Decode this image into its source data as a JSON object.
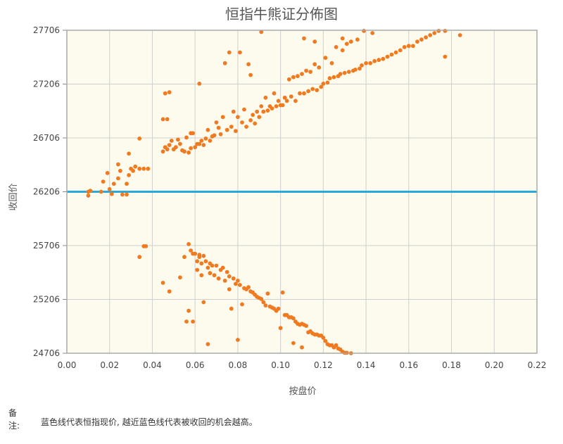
{
  "chart_data": {
    "type": "scatter",
    "title": "恒指牛熊证分佈图",
    "xlabel": "按盘价",
    "ylabel": "收回价",
    "xlim": [
      0,
      0.22
    ],
    "ylim": [
      24706,
      27706
    ],
    "x_ticks": [
      "0.00",
      "0.02",
      "0.04",
      "0.06",
      "0.08",
      "0.10",
      "0.12",
      "0.14",
      "0.16",
      "0.18",
      "0.20",
      "0.22"
    ],
    "y_ticks": [
      "24706",
      "25206",
      "25706",
      "26206",
      "26706",
      "27206",
      "27706"
    ],
    "grid": true,
    "reference_line": {
      "y": 26206,
      "color": "#29a9d8"
    },
    "marker_color": "#f07a1f",
    "plot_bg": "#fdfbee",
    "series": [
      {
        "points": [
          [
            0.01,
            26206
          ],
          [
            0.01,
            26170
          ],
          [
            0.011,
            26215
          ],
          [
            0.016,
            26206
          ],
          [
            0.017,
            26300
          ],
          [
            0.019,
            26380
          ],
          [
            0.02,
            26230
          ],
          [
            0.021,
            26185
          ],
          [
            0.022,
            26280
          ],
          [
            0.024,
            26330
          ],
          [
            0.024,
            26460
          ],
          [
            0.025,
            26400
          ],
          [
            0.026,
            26180
          ],
          [
            0.028,
            26180
          ],
          [
            0.028,
            26280
          ],
          [
            0.029,
            26360
          ],
          [
            0.029,
            26560
          ],
          [
            0.03,
            26420
          ],
          [
            0.031,
            26400
          ],
          [
            0.032,
            26440
          ],
          [
            0.034,
            26420
          ],
          [
            0.034,
            26700
          ],
          [
            0.036,
            26420
          ],
          [
            0.038,
            26420
          ],
          [
            0.045,
            26580
          ],
          [
            0.045,
            26880
          ],
          [
            0.046,
            26620
          ],
          [
            0.046,
            27120
          ],
          [
            0.047,
            26600
          ],
          [
            0.047,
            26880
          ],
          [
            0.048,
            26640
          ],
          [
            0.048,
            27130
          ],
          [
            0.049,
            26680
          ],
          [
            0.05,
            26600
          ],
          [
            0.051,
            26620
          ],
          [
            0.052,
            26690
          ],
          [
            0.053,
            26650
          ],
          [
            0.054,
            26590
          ],
          [
            0.055,
            26580
          ],
          [
            0.056,
            26710
          ],
          [
            0.057,
            26570
          ],
          [
            0.058,
            26610
          ],
          [
            0.058,
            26750
          ],
          [
            0.059,
            26750
          ],
          [
            0.06,
            26620
          ],
          [
            0.061,
            26650
          ],
          [
            0.062,
            26650
          ],
          [
            0.062,
            27210
          ],
          [
            0.063,
            26680
          ],
          [
            0.064,
            26640
          ],
          [
            0.065,
            26700
          ],
          [
            0.066,
            26780
          ],
          [
            0.067,
            26680
          ],
          [
            0.068,
            26720
          ],
          [
            0.069,
            26730
          ],
          [
            0.07,
            26850
          ],
          [
            0.071,
            26800
          ],
          [
            0.072,
            26740
          ],
          [
            0.073,
            26900
          ],
          [
            0.074,
            27400
          ],
          [
            0.075,
            26780
          ],
          [
            0.076,
            27500
          ],
          [
            0.077,
            26810
          ],
          [
            0.078,
            26950
          ],
          [
            0.079,
            26770
          ],
          [
            0.08,
            26900
          ],
          [
            0.081,
            27500
          ],
          [
            0.082,
            26850
          ],
          [
            0.083,
            26970
          ],
          [
            0.084,
            26810
          ],
          [
            0.085,
            27390
          ],
          [
            0.086,
            26870
          ],
          [
            0.087,
            26920
          ],
          [
            0.088,
            26840
          ],
          [
            0.089,
            26950
          ],
          [
            0.09,
            26900
          ],
          [
            0.091,
            27000
          ],
          [
            0.092,
            26950
          ],
          [
            0.093,
            27080
          ],
          [
            0.094,
            26960
          ],
          [
            0.095,
            27000
          ],
          [
            0.096,
            26980
          ],
          [
            0.097,
            27120
          ],
          [
            0.098,
            27000
          ],
          [
            0.099,
            27050
          ],
          [
            0.1,
            27010
          ],
          [
            0.101,
            27010
          ],
          [
            0.102,
            27080
          ],
          [
            0.103,
            27050
          ],
          [
            0.104,
            27250
          ],
          [
            0.105,
            27090
          ],
          [
            0.106,
            27270
          ],
          [
            0.107,
            27050
          ],
          [
            0.108,
            27280
          ],
          [
            0.109,
            27120
          ],
          [
            0.11,
            27300
          ],
          [
            0.111,
            27120
          ],
          [
            0.112,
            27330
          ],
          [
            0.113,
            27140
          ],
          [
            0.114,
            27320
          ],
          [
            0.115,
            27160
          ],
          [
            0.116,
            27390
          ],
          [
            0.117,
            27150
          ],
          [
            0.118,
            27360
          ],
          [
            0.119,
            27180
          ],
          [
            0.12,
            27210
          ],
          [
            0.121,
            27450
          ],
          [
            0.122,
            27220
          ],
          [
            0.123,
            27260
          ],
          [
            0.124,
            27400
          ],
          [
            0.125,
            27270
          ],
          [
            0.126,
            27550
          ],
          [
            0.127,
            27280
          ],
          [
            0.128,
            27300
          ],
          [
            0.129,
            27520
          ],
          [
            0.13,
            27310
          ],
          [
            0.131,
            27580
          ],
          [
            0.132,
            27320
          ],
          [
            0.133,
            27600
          ],
          [
            0.134,
            27330
          ],
          [
            0.135,
            27340
          ],
          [
            0.136,
            27620
          ],
          [
            0.137,
            27350
          ],
          [
            0.138,
            27380
          ],
          [
            0.139,
            27700
          ],
          [
            0.14,
            27400
          ],
          [
            0.142,
            27400
          ],
          [
            0.143,
            27680
          ],
          [
            0.144,
            27420
          ],
          [
            0.146,
            27430
          ],
          [
            0.148,
            27440
          ],
          [
            0.15,
            27460
          ],
          [
            0.152,
            27480
          ],
          [
            0.154,
            27500
          ],
          [
            0.156,
            27520
          ],
          [
            0.158,
            27550
          ],
          [
            0.16,
            27560
          ],
          [
            0.162,
            27560
          ],
          [
            0.164,
            27600
          ],
          [
            0.166,
            27620
          ],
          [
            0.168,
            27640
          ],
          [
            0.17,
            27660
          ],
          [
            0.172,
            27680
          ],
          [
            0.174,
            27700
          ],
          [
            0.177,
            27700
          ],
          [
            0.177,
            27460
          ],
          [
            0.184,
            27660
          ],
          [
            0.086,
            27290
          ],
          [
            0.091,
            27690
          ],
          [
            0.111,
            27630
          ],
          [
            0.116,
            27600
          ],
          [
            0.129,
            27630
          ],
          [
            0.034,
            25600
          ],
          [
            0.036,
            25700
          ],
          [
            0.037,
            25700
          ],
          [
            0.045,
            25360
          ],
          [
            0.048,
            25280
          ],
          [
            0.053,
            25410
          ],
          [
            0.055,
            25600
          ],
          [
            0.056,
            25000
          ],
          [
            0.057,
            25100
          ],
          [
            0.057,
            25720
          ],
          [
            0.058,
            25660
          ],
          [
            0.059,
            25630
          ],
          [
            0.059,
            25000
          ],
          [
            0.06,
            25630
          ],
          [
            0.061,
            25560
          ],
          [
            0.061,
            25480
          ],
          [
            0.062,
            25620
          ],
          [
            0.062,
            25600
          ],
          [
            0.063,
            25540
          ],
          [
            0.063,
            25430
          ],
          [
            0.064,
            25610
          ],
          [
            0.064,
            25180
          ],
          [
            0.065,
            25560
          ],
          [
            0.066,
            25500
          ],
          [
            0.066,
            24790
          ],
          [
            0.067,
            25540
          ],
          [
            0.067,
            25450
          ],
          [
            0.068,
            25520
          ],
          [
            0.069,
            25430
          ],
          [
            0.07,
            25520
          ],
          [
            0.071,
            25400
          ],
          [
            0.072,
            25480
          ],
          [
            0.073,
            25500
          ],
          [
            0.074,
            25380
          ],
          [
            0.075,
            25460
          ],
          [
            0.076,
            25420
          ],
          [
            0.076,
            25300
          ],
          [
            0.077,
            25120
          ],
          [
            0.078,
            25400
          ],
          [
            0.079,
            25350
          ],
          [
            0.08,
            24830
          ],
          [
            0.08,
            25380
          ],
          [
            0.081,
            25340
          ],
          [
            0.082,
            25160
          ],
          [
            0.083,
            25310
          ],
          [
            0.084,
            25300
          ],
          [
            0.085,
            25320
          ],
          [
            0.086,
            25280
          ],
          [
            0.087,
            25270
          ],
          [
            0.088,
            25250
          ],
          [
            0.089,
            25230
          ],
          [
            0.09,
            25220
          ],
          [
            0.091,
            25210
          ],
          [
            0.092,
            25180
          ],
          [
            0.093,
            25150
          ],
          [
            0.094,
            25260
          ],
          [
            0.095,
            25140
          ],
          [
            0.096,
            25130
          ],
          [
            0.097,
            25120
          ],
          [
            0.098,
            25100
          ],
          [
            0.099,
            25120
          ],
          [
            0.1,
            24940
          ],
          [
            0.101,
            25270
          ],
          [
            0.102,
            25060
          ],
          [
            0.103,
            25060
          ],
          [
            0.104,
            25040
          ],
          [
            0.105,
            25040
          ],
          [
            0.106,
            25030
          ],
          [
            0.107,
            25000
          ],
          [
            0.108,
            24980
          ],
          [
            0.109,
            24970
          ],
          [
            0.11,
            24980
          ],
          [
            0.111,
            24970
          ],
          [
            0.112,
            24960
          ],
          [
            0.113,
            24900
          ],
          [
            0.114,
            24910
          ],
          [
            0.115,
            24890
          ],
          [
            0.116,
            24880
          ],
          [
            0.117,
            24880
          ],
          [
            0.118,
            24870
          ],
          [
            0.119,
            24870
          ],
          [
            0.12,
            24850
          ],
          [
            0.121,
            24820
          ],
          [
            0.122,
            24790
          ],
          [
            0.123,
            24780
          ],
          [
            0.124,
            24780
          ],
          [
            0.125,
            24760
          ],
          [
            0.126,
            24780
          ],
          [
            0.127,
            24750
          ],
          [
            0.128,
            24740
          ],
          [
            0.129,
            24720
          ],
          [
            0.13,
            24710
          ],
          [
            0.131,
            24710
          ],
          [
            0.133,
            24706
          ],
          [
            0.106,
            24800
          ],
          [
            0.11,
            24760
          ]
        ]
      }
    ]
  },
  "note": {
    "label": "备注:",
    "text": "蓝色线代表恒指现价, 越近蓝色线代表被收回的机会越高。"
  }
}
